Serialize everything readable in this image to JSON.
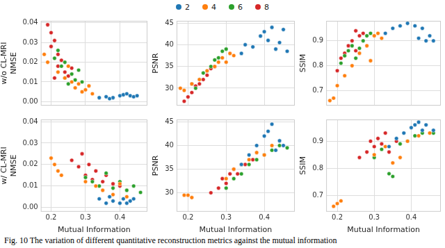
{
  "caption": "Fig. 10 The variation of different quantitative reconstruction metrics against the mutual information",
  "chart_data": [
    {
      "type": "scatter",
      "ylabel": [
        "w/o CL-MRI",
        "NMSE"
      ],
      "legend": "top",
      "grid": true,
      "tick_labels": "y",
      "xlim": [
        0.17,
        0.48
      ],
      "xticks": [
        0.2,
        0.3,
        0.4
      ],
      "ylim": [
        -0.002,
        0.041
      ],
      "yticks": [
        {
          "value": 0,
          "label": "0.00"
        },
        {
          "value": 0.01,
          "label": "0.01"
        },
        {
          "value": 0.02,
          "label": "0.02"
        },
        {
          "value": 0.03,
          "label": "0.03"
        },
        {
          "value": 0.04,
          "label": "0.04"
        }
      ],
      "series": [
        {
          "name": "2",
          "color": "#1f77b4",
          "x": [
            0.34,
            0.36,
            0.38,
            0.4,
            0.41,
            0.42,
            0.43,
            0.44,
            0.45,
            0.37
          ],
          "values": [
            0.002,
            0.0025,
            0.002,
            0.003,
            0.0035,
            0.004,
            0.003,
            0.0025,
            0.003,
            0.0015
          ]
        },
        {
          "name": "4",
          "color": "#ff7f0e",
          "x": [
            0.18,
            0.19,
            0.22,
            0.24,
            0.26,
            0.27,
            0.28,
            0.29,
            0.3,
            0.31,
            0.32,
            0.25
          ],
          "values": [
            0.024,
            0.02,
            0.015,
            0.012,
            0.01,
            0.007,
            0.009,
            0.005,
            0.006,
            0.008,
            0.004,
            0.018
          ]
        },
        {
          "name": "6",
          "color": "#2ca02c",
          "x": [
            0.21,
            0.22,
            0.23,
            0.24,
            0.25,
            0.26,
            0.27,
            0.28,
            0.29,
            0.24
          ],
          "values": [
            0.022,
            0.026,
            0.018,
            0.012,
            0.009,
            0.014,
            0.011,
            0.016,
            0.01,
            0.02
          ]
        },
        {
          "name": "8",
          "color": "#d62728",
          "x": [
            0.19,
            0.2,
            0.2,
            0.21,
            0.22,
            0.22,
            0.23,
            0.24,
            0.25,
            0.26,
            0.21
          ],
          "values": [
            0.039,
            0.035,
            0.028,
            0.031,
            0.024,
            0.018,
            0.021,
            0.015,
            0.013,
            0.017,
            0.012
          ]
        }
      ]
    },
    {
      "type": "scatter",
      "ylabel": "PSNR",
      "grid": true,
      "tick_labels": "y",
      "xlim": [
        0.17,
        0.48
      ],
      "xticks": [
        0.2,
        0.3,
        0.4
      ],
      "ylim": [
        26,
        45.5
      ],
      "yticks": [
        30,
        35,
        40,
        45
      ],
      "series": [
        {
          "name": "2",
          "color": "#1f77b4",
          "x": [
            0.34,
            0.35,
            0.37,
            0.39,
            0.4,
            0.41,
            0.42,
            0.43,
            0.44,
            0.45,
            0.46
          ],
          "values": [
            38,
            40,
            39.5,
            42,
            43,
            41,
            44,
            39,
            40.5,
            43.5,
            38.5
          ]
        },
        {
          "name": "4",
          "color": "#ff7f0e",
          "x": [
            0.18,
            0.19,
            0.21,
            0.23,
            0.25,
            0.27,
            0.28,
            0.29,
            0.3,
            0.31,
            0.32
          ],
          "values": [
            30,
            29.5,
            31,
            32,
            34,
            35,
            36,
            37,
            36,
            38,
            37.5
          ]
        },
        {
          "name": "6",
          "color": "#2ca02c",
          "x": [
            0.21,
            0.22,
            0.23,
            0.24,
            0.25,
            0.26,
            0.27,
            0.28,
            0.29,
            0.3
          ],
          "values": [
            31,
            30,
            32,
            33.5,
            34,
            35,
            36.5,
            37,
            38.5,
            39
          ]
        },
        {
          "name": "8",
          "color": "#d62728",
          "x": [
            0.19,
            0.2,
            0.21,
            0.22,
            0.23,
            0.24,
            0.25,
            0.26,
            0.27
          ],
          "values": [
            27,
            28,
            29,
            30.5,
            31,
            32,
            33,
            34.5,
            35
          ]
        }
      ]
    },
    {
      "type": "scatter",
      "ylabel": "SSIM",
      "grid": true,
      "tick_labels": "y",
      "xlim": [
        0.17,
        0.48
      ],
      "xticks": [
        0.2,
        0.3,
        0.4
      ],
      "ylim": [
        0.64,
        0.98
      ],
      "yticks": [
        0.7,
        0.8,
        0.9
      ],
      "series": [
        {
          "name": "2",
          "color": "#1f77b4",
          "x": [
            0.33,
            0.35,
            0.37,
            0.39,
            0.41,
            0.42,
            0.43,
            0.44,
            0.45,
            0.46
          ],
          "values": [
            0.93,
            0.95,
            0.96,
            0.97,
            0.96,
            0.91,
            0.95,
            0.9,
            0.92,
            0.9
          ]
        },
        {
          "name": "4",
          "color": "#ff7f0e",
          "x": [
            0.18,
            0.19,
            0.2,
            0.22,
            0.24,
            0.26,
            0.28,
            0.3,
            0.31,
            0.32,
            0.29
          ],
          "values": [
            0.66,
            0.67,
            0.72,
            0.76,
            0.8,
            0.85,
            0.88,
            0.92,
            0.93,
            0.91,
            0.82
          ]
        },
        {
          "name": "6",
          "color": "#2ca02c",
          "x": [
            0.21,
            0.22,
            0.23,
            0.24,
            0.25,
            0.26,
            0.27,
            0.28,
            0.29
          ],
          "values": [
            0.81,
            0.84,
            0.86,
            0.88,
            0.83,
            0.87,
            0.9,
            0.92,
            0.93
          ]
        },
        {
          "name": "8",
          "color": "#d62728",
          "x": [
            0.2,
            0.21,
            0.22,
            0.23,
            0.24,
            0.25,
            0.26,
            0.27,
            0.25
          ],
          "values": [
            0.78,
            0.83,
            0.85,
            0.88,
            0.9,
            0.86,
            0.92,
            0.93,
            0.94
          ]
        }
      ]
    },
    {
      "type": "scatter",
      "ylabel": [
        "w/ CL-MRI",
        "NMSE"
      ],
      "xlabel": "Mutual Information",
      "grid": true,
      "xlim": [
        0.17,
        0.48
      ],
      "xticks": [
        0.2,
        0.3,
        0.4
      ],
      "ylim": [
        -0.002,
        0.041
      ],
      "yticks": [
        {
          "value": 0,
          "label": "0.00"
        },
        {
          "value": 0.01,
          "label": "0.01"
        },
        {
          "value": 0.02,
          "label": "0.02"
        },
        {
          "value": 0.03,
          "label": "0.03"
        },
        {
          "value": 0.04,
          "label": "0.04"
        }
      ],
      "series": [
        {
          "name": "2",
          "color": "#1f77b4",
          "x": [
            0.34,
            0.36,
            0.38,
            0.4,
            0.41,
            0.42,
            0.43,
            0.44,
            0.37
          ],
          "values": [
            0.004,
            0.002,
            0.003,
            0.002,
            0.004,
            0.002,
            0.003,
            0.004,
            0.005
          ]
        },
        {
          "name": "4",
          "color": "#ff7f0e",
          "x": [
            0.2,
            0.21,
            0.22,
            0.23,
            0.3,
            0.33,
            0.35,
            0.38,
            0.4,
            0.42
          ],
          "values": [
            0.023,
            0.02,
            0.017,
            0.015,
            0.012,
            0.01,
            0.008,
            0.006,
            0.011,
            0.005
          ]
        },
        {
          "name": "6",
          "color": "#2ca02c",
          "x": [
            0.3,
            0.32,
            0.34,
            0.36,
            0.38,
            0.4,
            0.42,
            0.44,
            0.46
          ],
          "values": [
            0.014,
            0.012,
            0.01,
            0.016,
            0.009,
            0.012,
            0.008,
            0.01,
            0.007
          ]
        },
        {
          "name": "8",
          "color": "#d62728",
          "x": [
            0.26,
            0.28,
            0.29,
            0.3,
            0.31,
            0.32,
            0.33,
            0.35,
            0.36,
            0.38,
            0.4
          ],
          "values": [
            0.022,
            0.019,
            0.025,
            0.015,
            0.02,
            0.013,
            0.017,
            0.012,
            0.015,
            0.011,
            0.01
          ]
        }
      ]
    },
    {
      "type": "scatter",
      "ylabel": "PSNR",
      "xlabel": "Mutual Information",
      "grid": true,
      "xlim": [
        0.17,
        0.48
      ],
      "xticks": [
        0.2,
        0.3,
        0.4
      ],
      "ylim": [
        26,
        45.5
      ],
      "yticks": [
        30,
        35,
        40,
        45
      ],
      "series": [
        {
          "name": "2",
          "color": "#1f77b4",
          "x": [
            0.34,
            0.36,
            0.38,
            0.4,
            0.41,
            0.42,
            0.43,
            0.44,
            0.45
          ],
          "values": [
            36,
            38,
            40,
            42,
            43,
            44.5,
            39,
            41,
            40
          ]
        },
        {
          "name": "4",
          "color": "#ff7f0e",
          "x": [
            0.19,
            0.2,
            0.21,
            0.3,
            0.32,
            0.34,
            0.36,
            0.38,
            0.4,
            0.42
          ],
          "values": [
            29.5,
            29.5,
            29,
            33,
            35,
            36,
            37,
            38.5,
            38,
            40
          ]
        },
        {
          "name": "6",
          "color": "#2ca02c",
          "x": [
            0.3,
            0.32,
            0.34,
            0.36,
            0.38,
            0.4,
            0.42,
            0.44,
            0.46
          ],
          "values": [
            31,
            33,
            34,
            36,
            37,
            38,
            39,
            40,
            39.5
          ]
        },
        {
          "name": "8",
          "color": "#d62728",
          "x": [
            0.26,
            0.28,
            0.29,
            0.3,
            0.31,
            0.32,
            0.33,
            0.35,
            0.37
          ],
          "values": [
            30,
            31,
            33,
            32,
            34,
            35,
            34,
            36,
            37
          ]
        }
      ]
    },
    {
      "type": "scatter",
      "ylabel": "SSIM",
      "xlabel": "Mutual Information",
      "grid": true,
      "xlim": [
        0.17,
        0.48
      ],
      "xticks": [
        0.2,
        0.3,
        0.4
      ],
      "ylim": [
        0.64,
        0.98
      ],
      "yticks": [
        0.7,
        0.8,
        0.9
      ],
      "series": [
        {
          "name": "2",
          "color": "#1f77b4",
          "x": [
            0.34,
            0.36,
            0.38,
            0.4,
            0.41,
            0.42,
            0.43,
            0.44,
            0.46
          ],
          "values": [
            0.88,
            0.91,
            0.93,
            0.95,
            0.96,
            0.97,
            0.94,
            0.96,
            0.94
          ]
        },
        {
          "name": "4",
          "color": "#ff7f0e",
          "x": [
            0.19,
            0.2,
            0.21,
            0.3,
            0.33,
            0.35,
            0.37,
            0.39,
            0.42,
            0.45
          ],
          "values": [
            0.66,
            0.67,
            0.68,
            0.85,
            0.88,
            0.82,
            0.84,
            0.9,
            0.92,
            0.93
          ]
        },
        {
          "name": "6",
          "color": "#2ca02c",
          "x": [
            0.3,
            0.32,
            0.34,
            0.35,
            0.37,
            0.39,
            0.41,
            0.43,
            0.46
          ],
          "values": [
            0.84,
            0.87,
            0.78,
            0.77,
            0.89,
            0.9,
            0.92,
            0.93,
            0.93
          ]
        },
        {
          "name": "8",
          "color": "#d62728",
          "x": [
            0.26,
            0.28,
            0.29,
            0.3,
            0.31,
            0.32,
            0.33,
            0.34,
            0.36
          ],
          "values": [
            0.84,
            0.86,
            0.9,
            0.88,
            0.91,
            0.89,
            0.93,
            0.86,
            0.9
          ]
        }
      ]
    }
  ]
}
